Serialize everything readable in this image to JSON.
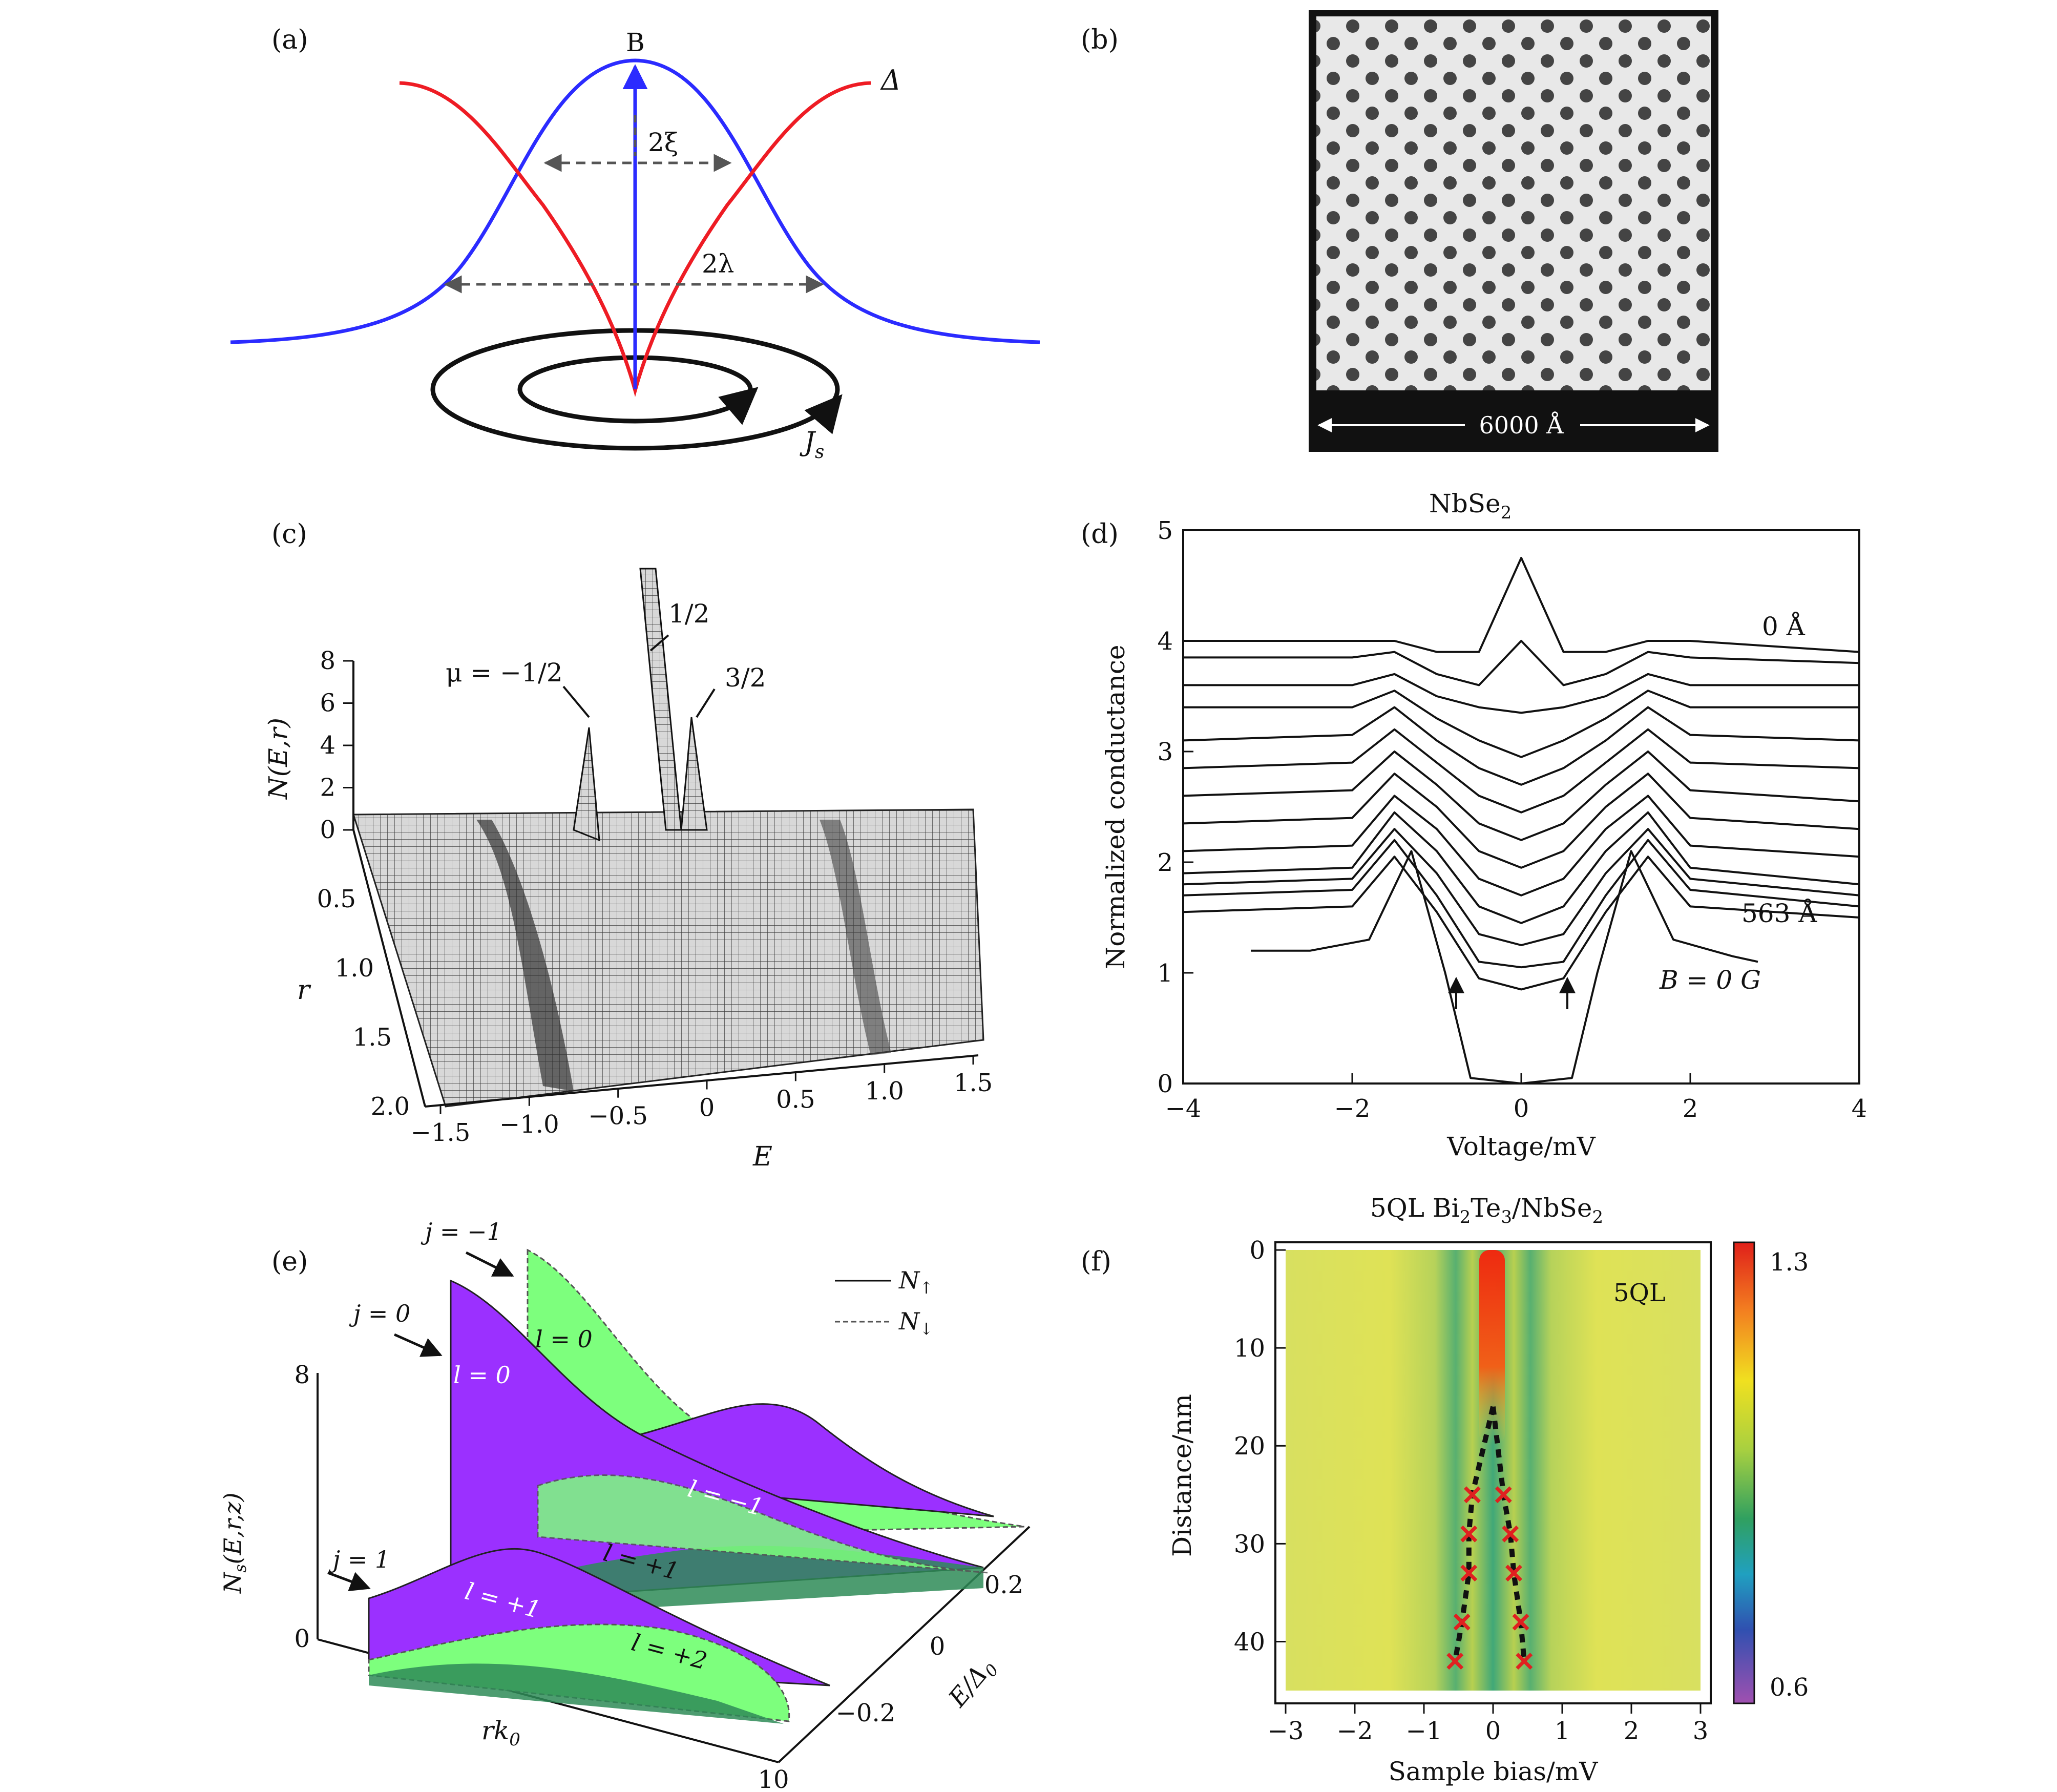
{
  "panels": {
    "a": {
      "label": "(a)",
      "B_label": "B",
      "delta_label": "Δ",
      "xi_label": "2ξ",
      "lambda_label": "2λ",
      "js_label": "J",
      "js_sub": "s",
      "colors": {
        "B_curve": "#2b2bff",
        "delta_curve": "#ee1c24"
      }
    },
    "b": {
      "label": "(b)",
      "scale_label": "6000 Å"
    },
    "c": {
      "label": "(c)",
      "zlabel": "N(E,r)",
      "zticks": [
        "0",
        "2",
        "4",
        "6",
        "8"
      ],
      "rlabel": "r",
      "rticks": [
        "0.5",
        "1.0",
        "1.5",
        "2.0"
      ],
      "elabel": "E",
      "eticks": [
        "−1.5",
        "−1.0",
        "−0.5",
        "0",
        "0.5",
        "1.0",
        "1.5"
      ],
      "peak_labels": [
        "μ = −1/2",
        "1/2",
        "3/2"
      ]
    },
    "d": {
      "label": "(d)",
      "title": "NbSe",
      "title_sub": "2",
      "ylabel": "Normalized conductance",
      "xlabel": "Voltage/mV",
      "yticks": [
        "0",
        "1",
        "2",
        "3",
        "4",
        "5"
      ],
      "xticks": [
        "−4",
        "−2",
        "0",
        "2",
        "4"
      ],
      "annot_top": "0 Å",
      "annot_bottom": "563 Å",
      "annot_field": "B = 0 G"
    },
    "e": {
      "label": "(e)",
      "ylabel": "N",
      "ylabel_rest": "(E,r,z)",
      "ylabel_sub": "s",
      "yticks": [
        "0",
        "8"
      ],
      "xlabel": "rk",
      "xlabel_sub": "0",
      "xtick_end": "10",
      "elabel": "E/Δ",
      "elabel_sub": "0",
      "eticks": [
        "0.2",
        "0",
        "−0.2"
      ],
      "legend_up": "N",
      "legend_up_sub": "↑",
      "legend_down": "N",
      "legend_down_sub": "↓",
      "j_labels": [
        "j = −1",
        "j = 0",
        "j = 1"
      ],
      "l_labels": [
        "l = 0",
        "l = 0",
        "l = −1",
        "l = +1",
        "l = +1",
        "l = +2"
      ],
      "colors": {
        "purple": "#9b30ff",
        "green": "#7dff7d",
        "teal": "#2e8b57"
      }
    },
    "f": {
      "label": "(f)",
      "title": "5QL Bi",
      "title_sub1": "2",
      "title_mid": "Te",
      "title_sub2": "3",
      "title_end": "/NbSe",
      "title_sub3": "2",
      "inset_label": "5QL",
      "ylabel": "Distance/nm",
      "xlabel": "Sample bias/mV",
      "yticks": [
        "0",
        "10",
        "20",
        "30",
        "40"
      ],
      "xticks": [
        "−3",
        "−2",
        "−1",
        "0",
        "1",
        "2",
        "3"
      ],
      "colorbar_max": "1.3",
      "colorbar_min": "0.6"
    }
  },
  "chart_data": [
    {
      "type": "line",
      "panel": "d",
      "title": "NbSe2",
      "xlabel": "Voltage/mV",
      "ylabel": "Normalized conductance",
      "xlim": [
        -4,
        4
      ],
      "ylim": [
        0,
        5
      ],
      "series": [
        {
          "x": [
            -4,
            -2,
            -1.5,
            -1,
            -0.5,
            0,
            0.5,
            1,
            1.5,
            2,
            4
          ],
          "y": [
            4.0,
            4.0,
            4.0,
            3.9,
            3.9,
            4.75,
            3.9,
            3.9,
            4.0,
            4.0,
            3.9
          ]
        },
        {
          "x": [
            -4,
            -2,
            -1.5,
            -1,
            -0.5,
            0,
            0.5,
            1,
            1.5,
            2,
            4
          ],
          "y": [
            3.85,
            3.85,
            3.9,
            3.7,
            3.6,
            4.0,
            3.6,
            3.7,
            3.9,
            3.85,
            3.8
          ]
        },
        {
          "x": [
            -4,
            -2,
            -1.5,
            -1,
            -0.5,
            0,
            0.5,
            1,
            1.5,
            2,
            4
          ],
          "y": [
            3.6,
            3.6,
            3.7,
            3.5,
            3.4,
            3.35,
            3.4,
            3.5,
            3.7,
            3.6,
            3.6
          ]
        },
        {
          "x": [
            -4,
            -2,
            -1.5,
            -1,
            -0.5,
            0,
            0.5,
            1,
            1.5,
            2,
            4
          ],
          "y": [
            3.4,
            3.4,
            3.55,
            3.3,
            3.1,
            2.95,
            3.1,
            3.3,
            3.55,
            3.4,
            3.4
          ]
        },
        {
          "x": [
            -4,
            -2,
            -1.5,
            -1,
            -0.5,
            0,
            0.5,
            1,
            1.5,
            2,
            4
          ],
          "y": [
            3.1,
            3.15,
            3.4,
            3.1,
            2.85,
            2.7,
            2.85,
            3.1,
            3.4,
            3.15,
            3.1
          ]
        },
        {
          "x": [
            -4,
            -2,
            -1.5,
            -1,
            -0.5,
            0,
            0.5,
            1,
            1.5,
            2,
            4
          ],
          "y": [
            2.85,
            2.9,
            3.2,
            2.9,
            2.6,
            2.45,
            2.6,
            2.9,
            3.2,
            2.9,
            2.85
          ]
        },
        {
          "x": [
            -4,
            -2,
            -1.5,
            -1,
            -0.5,
            0,
            0.5,
            1,
            1.5,
            2,
            4
          ],
          "y": [
            2.6,
            2.65,
            3.0,
            2.7,
            2.35,
            2.2,
            2.35,
            2.7,
            3.0,
            2.65,
            2.55
          ]
        },
        {
          "x": [
            -4,
            -2,
            -1.5,
            -1,
            -0.5,
            0,
            0.5,
            1,
            1.5,
            2,
            4
          ],
          "y": [
            2.35,
            2.4,
            2.8,
            2.5,
            2.1,
            1.95,
            2.1,
            2.5,
            2.8,
            2.4,
            2.3
          ]
        },
        {
          "x": [
            -4,
            -2,
            -1.5,
            -1,
            -0.5,
            0,
            0.5,
            1,
            1.5,
            2,
            4
          ],
          "y": [
            2.1,
            2.15,
            2.6,
            2.3,
            1.85,
            1.7,
            1.85,
            2.3,
            2.6,
            2.15,
            2.05
          ]
        },
        {
          "x": [
            -4,
            -2,
            -1.5,
            -1,
            -0.5,
            0,
            0.5,
            1,
            1.5,
            2,
            4
          ],
          "y": [
            1.9,
            1.95,
            2.45,
            2.1,
            1.6,
            1.45,
            1.6,
            2.1,
            2.45,
            1.95,
            1.8
          ]
        },
        {
          "x": [
            -4,
            -2,
            -1.5,
            -1,
            -0.5,
            0,
            0.5,
            1,
            1.5,
            2,
            4
          ],
          "y": [
            1.8,
            1.85,
            2.3,
            1.9,
            1.35,
            1.25,
            1.35,
            1.9,
            2.3,
            1.85,
            1.7
          ]
        },
        {
          "x": [
            -4,
            -2,
            -1.5,
            -1,
            -0.5,
            0,
            0.5,
            1,
            1.5,
            2,
            4
          ],
          "y": [
            1.7,
            1.75,
            2.2,
            1.7,
            1.1,
            1.05,
            1.1,
            1.7,
            2.2,
            1.75,
            1.6
          ]
        },
        {
          "x": [
            -4,
            -2,
            -1.5,
            -1,
            -0.5,
            0,
            0.5,
            1,
            1.5,
            2,
            4
          ],
          "y": [
            1.55,
            1.6,
            2.05,
            1.55,
            0.95,
            0.85,
            0.95,
            1.55,
            2.05,
            1.6,
            1.5
          ]
        },
        {
          "x": [
            -3.2,
            -2.5,
            -1.8,
            -1.3,
            -0.9,
            -0.6,
            0,
            0.6,
            0.9,
            1.3,
            1.8,
            2.5,
            2.8
          ],
          "y": [
            1.2,
            1.2,
            1.3,
            2.1,
            1.0,
            0.05,
            0.0,
            0.05,
            1.0,
            2.1,
            1.3,
            1.15,
            1.1
          ]
        }
      ]
    },
    {
      "type": "heatmap",
      "panel": "f",
      "title": "5QL Bi2Te3/NbSe2",
      "xlabel": "Sample bias/mV",
      "ylabel": "Distance/nm",
      "xlim": [
        -3,
        3
      ],
      "ylim": [
        0,
        45
      ],
      "colorbar_range": [
        0.6,
        1.3
      ],
      "peak_markers": {
        "x": [
          -0.3,
          0.15,
          -0.35,
          0.25,
          -0.35,
          0.3,
          -0.45,
          0.4,
          -0.55,
          0.45
        ],
        "y": [
          25,
          25,
          29,
          29,
          33,
          33,
          38,
          38,
          42,
          42
        ]
      }
    }
  ]
}
